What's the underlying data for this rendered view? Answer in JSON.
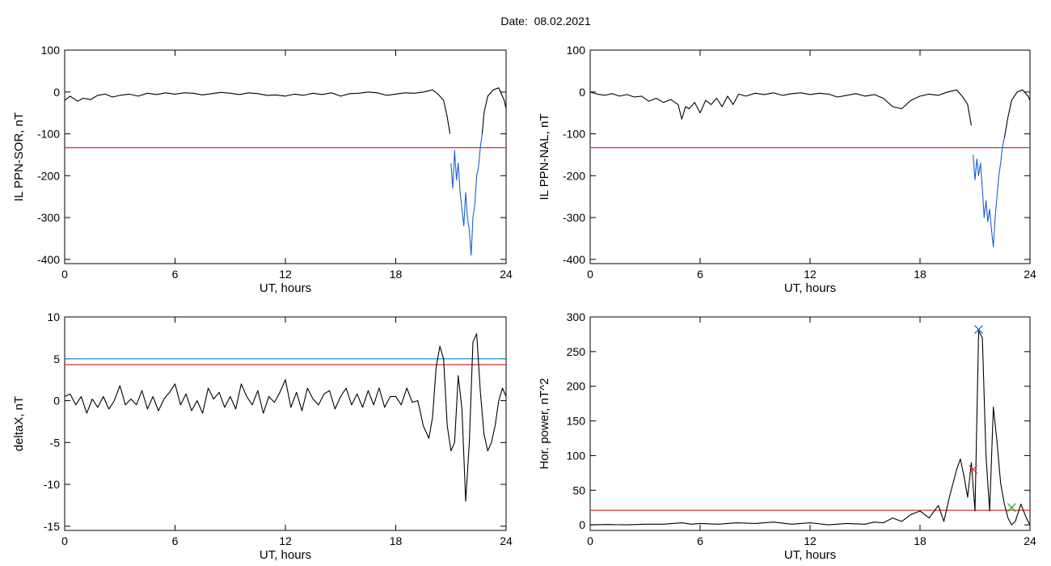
{
  "title": "Date:  08.02.2021",
  "chart_data": [
    {
      "type": "line",
      "ylabel": "IL PPN-SOR, nT",
      "xlabel": "UT, hours",
      "xlim": [
        0,
        24
      ],
      "ylim": [
        -410,
        100
      ],
      "xticks": [
        0,
        6,
        12,
        18,
        24
      ],
      "yticks": [
        100,
        0,
        -100,
        -200,
        -300,
        -400
      ],
      "hlines": [
        {
          "y": -133,
          "color": "#e03030"
        }
      ],
      "series": [
        {
          "color": "#000000",
          "x": [
            0,
            0.3,
            0.7,
            1,
            1.4,
            1.8,
            2.2,
            2.6,
            3,
            3.5,
            4,
            4.5,
            5,
            5.5,
            6,
            6.5,
            7,
            7.5,
            8,
            8.5,
            9,
            9.5,
            10,
            10.5,
            11,
            11.5,
            12,
            12.5,
            13,
            13.5,
            14,
            14.5,
            15,
            15.5,
            16,
            16.5,
            17,
            17.5,
            18,
            18.5,
            19,
            19.5,
            20,
            20.3,
            20.6,
            20.8,
            20.95
          ],
          "y": [
            -20,
            -10,
            -22,
            -15,
            -18,
            -8,
            -5,
            -12,
            -8,
            -5,
            -10,
            -3,
            -6,
            -2,
            -5,
            -2,
            -3,
            -7,
            -4,
            -1,
            -3,
            -6,
            -2,
            -4,
            -8,
            -7,
            -10,
            -5,
            -8,
            -3,
            -6,
            -2,
            -10,
            -4,
            -3,
            0,
            -2,
            -8,
            -5,
            -2,
            -3,
            0,
            5,
            -5,
            -20,
            -60,
            -100
          ]
        },
        {
          "color": "#1a5fd6",
          "x": [
            21,
            21.1,
            21.2,
            21.3,
            21.4,
            21.5,
            21.6,
            21.7,
            21.8,
            21.9,
            22,
            22.1,
            22.2,
            22.3,
            22.4,
            22.5,
            22.6,
            22.7
          ],
          "y": [
            -170,
            -230,
            -140,
            -210,
            -170,
            -240,
            -280,
            -320,
            -240,
            -300,
            -330,
            -390,
            -300,
            -270,
            -200,
            -180,
            -130,
            -100
          ]
        },
        {
          "color": "#000000",
          "x": [
            22.7,
            22.8,
            23,
            23.3,
            23.6,
            23.9,
            24
          ],
          "y": [
            -100,
            -50,
            -10,
            5,
            10,
            -20,
            -40
          ]
        }
      ]
    },
    {
      "type": "line",
      "ylabel": "IL PPN-NAL, nT",
      "xlabel": "UT, hours",
      "xlim": [
        0,
        24
      ],
      "ylim": [
        -410,
        100
      ],
      "xticks": [
        0,
        6,
        12,
        18,
        24
      ],
      "yticks": [
        100,
        0,
        -100,
        -200,
        -300,
        -400
      ],
      "hlines": [
        {
          "y": -133,
          "color": "#e03030"
        }
      ],
      "series": [
        {
          "color": "#000000",
          "x": [
            0,
            0.4,
            0.8,
            1.2,
            1.6,
            2,
            2.4,
            2.8,
            3.2,
            3.6,
            4,
            4.4,
            4.8,
            5,
            5.2,
            5.4,
            5.7,
            6,
            6.3,
            6.6,
            6.9,
            7.2,
            7.5,
            7.8,
            8.1,
            8.5,
            9,
            9.5,
            10,
            10.5,
            11,
            11.5,
            12,
            12.5,
            13,
            13.5,
            14,
            14.5,
            15,
            15.5,
            16,
            16.5,
            17,
            17.5,
            18,
            18.5,
            19,
            19.5,
            20,
            20.3,
            20.6,
            20.8
          ],
          "y": [
            0,
            -5,
            -8,
            -4,
            -10,
            -6,
            -12,
            -10,
            -22,
            -15,
            -25,
            -18,
            -30,
            -65,
            -35,
            -40,
            -25,
            -50,
            -20,
            -30,
            -15,
            -35,
            -10,
            -30,
            -5,
            -10,
            -3,
            -6,
            -2,
            -8,
            -4,
            -2,
            -6,
            -3,
            -5,
            -12,
            -8,
            -4,
            -10,
            -6,
            -15,
            -35,
            -40,
            -20,
            -10,
            -5,
            -8,
            0,
            5,
            -10,
            -30,
            -80
          ]
        },
        {
          "color": "#1a5fd6",
          "x": [
            20.9,
            21,
            21.1,
            21.2,
            21.3,
            21.4,
            21.5,
            21.6,
            21.7,
            21.8,
            21.9,
            22,
            22.1,
            22.2,
            22.3,
            22.4,
            22.5,
            22.6
          ],
          "y": [
            -150,
            -210,
            -160,
            -200,
            -170,
            -230,
            -300,
            -260,
            -310,
            -280,
            -330,
            -370,
            -300,
            -250,
            -200,
            -170,
            -130,
            -110
          ]
        },
        {
          "color": "#000000",
          "x": [
            22.6,
            22.8,
            23,
            23.3,
            23.6,
            23.9,
            24
          ],
          "y": [
            -110,
            -60,
            -20,
            0,
            5,
            -10,
            -20
          ]
        }
      ]
    },
    {
      "type": "line",
      "ylabel": "deltaX, nT",
      "xlabel": "UT, hours",
      "xlim": [
        0,
        24
      ],
      "ylim": [
        -15.5,
        10
      ],
      "xticks": [
        0,
        6,
        12,
        18,
        24
      ],
      "yticks": [
        10,
        5,
        0,
        -5,
        -10,
        -15
      ],
      "hlines": [
        {
          "y": 5,
          "color": "#1a9acb"
        },
        {
          "y": 4.3,
          "color": "#e03030"
        }
      ],
      "series": [
        {
          "color": "#000000",
          "x": [
            0,
            0.3,
            0.6,
            0.9,
            1.2,
            1.5,
            1.8,
            2.1,
            2.4,
            2.7,
            3,
            3.3,
            3.6,
            3.9,
            4.2,
            4.5,
            4.8,
            5.1,
            5.4,
            5.7,
            6,
            6.3,
            6.6,
            6.9,
            7.2,
            7.5,
            7.8,
            8.1,
            8.4,
            8.7,
            9,
            9.3,
            9.6,
            9.9,
            10.2,
            10.5,
            10.8,
            11.1,
            11.4,
            11.7,
            12,
            12.3,
            12.6,
            12.9,
            13.2,
            13.5,
            13.8,
            14.1,
            14.4,
            14.7,
            15,
            15.3,
            15.6,
            15.9,
            16.2,
            16.5,
            16.8,
            17.1,
            17.4,
            17.7,
            18,
            18.3,
            18.6,
            18.9,
            19.2,
            19.5,
            19.8,
            20,
            20.2,
            20.4,
            20.6,
            20.8,
            21,
            21.2,
            21.4,
            21.6,
            21.8,
            22,
            22.2,
            22.4,
            22.6,
            22.8,
            23,
            23.2,
            23.4,
            23.6,
            23.8,
            24
          ],
          "y": [
            0.5,
            0.8,
            -0.5,
            0.5,
            -1.5,
            0.2,
            -0.8,
            0.5,
            -1,
            0,
            1.8,
            -0.5,
            0.2,
            -0.5,
            1.2,
            -1,
            0.5,
            -1.2,
            0.2,
            1,
            2,
            -0.5,
            0.8,
            -1.2,
            0,
            -1.5,
            1.5,
            0.2,
            1,
            -0.8,
            0.5,
            -1,
            2,
            0.5,
            -0.5,
            1.2,
            -1.5,
            0.5,
            -0.2,
            1,
            2.5,
            -0.8,
            1,
            -1.2,
            1.5,
            0.2,
            -0.5,
            0.8,
            1.2,
            -1,
            0.5,
            1.5,
            -0.5,
            0.8,
            -0.8,
            1.2,
            -0.5,
            1.5,
            -0.8,
            0.5,
            0.5,
            -0.5,
            1.5,
            -0.2,
            0,
            -3,
            -4.5,
            -2,
            4,
            6.5,
            5,
            -3,
            -6,
            -5,
            3,
            -1,
            -12,
            -5,
            7,
            8,
            1,
            -4,
            -6,
            -5,
            -3,
            0,
            1.5,
            0.5
          ]
        }
      ]
    },
    {
      "type": "line",
      "ylabel": "Hor. power, nT^2",
      "xlabel": "UT, hours",
      "xlim": [
        0,
        24
      ],
      "ylim": [
        -8,
        300
      ],
      "xticks": [
        0,
        6,
        12,
        18,
        24
      ],
      "yticks": [
        300,
        250,
        200,
        150,
        100,
        50,
        0
      ],
      "hlines": [
        {
          "y": 21,
          "color": "#e03030"
        }
      ],
      "series": [
        {
          "color": "#000000",
          "x": [
            0,
            1,
            2,
            3,
            4,
            5,
            5.5,
            6,
            7,
            8,
            9,
            10,
            11,
            12,
            13,
            14,
            15,
            15.5,
            16,
            16.5,
            17,
            17.5,
            18,
            18.5,
            19,
            19.3,
            19.6,
            20,
            20.2,
            20.4,
            20.6,
            20.8,
            21,
            21.2,
            21.4,
            21.6,
            21.8,
            22,
            22.2,
            22.4,
            22.6,
            22.8,
            23,
            23.2,
            23.5,
            23.8,
            24
          ],
          "y": [
            0,
            0.5,
            0,
            1,
            1,
            3,
            1,
            2,
            1,
            3,
            2,
            4,
            1,
            3,
            0,
            2,
            1,
            4,
            3,
            10,
            5,
            15,
            20,
            10,
            28,
            5,
            40,
            80,
            95,
            70,
            40,
            90,
            20,
            280,
            270,
            100,
            20,
            170,
            120,
            60,
            30,
            10,
            0,
            5,
            30,
            10,
            0
          ]
        }
      ],
      "markers": [
        {
          "x": 21.2,
          "y": 282,
          "color": "#1a5fd6"
        },
        {
          "x": 20.9,
          "y": 80,
          "color": "#e03030"
        },
        {
          "x": 23.0,
          "y": 25,
          "color": "#2aa02a"
        }
      ]
    }
  ]
}
